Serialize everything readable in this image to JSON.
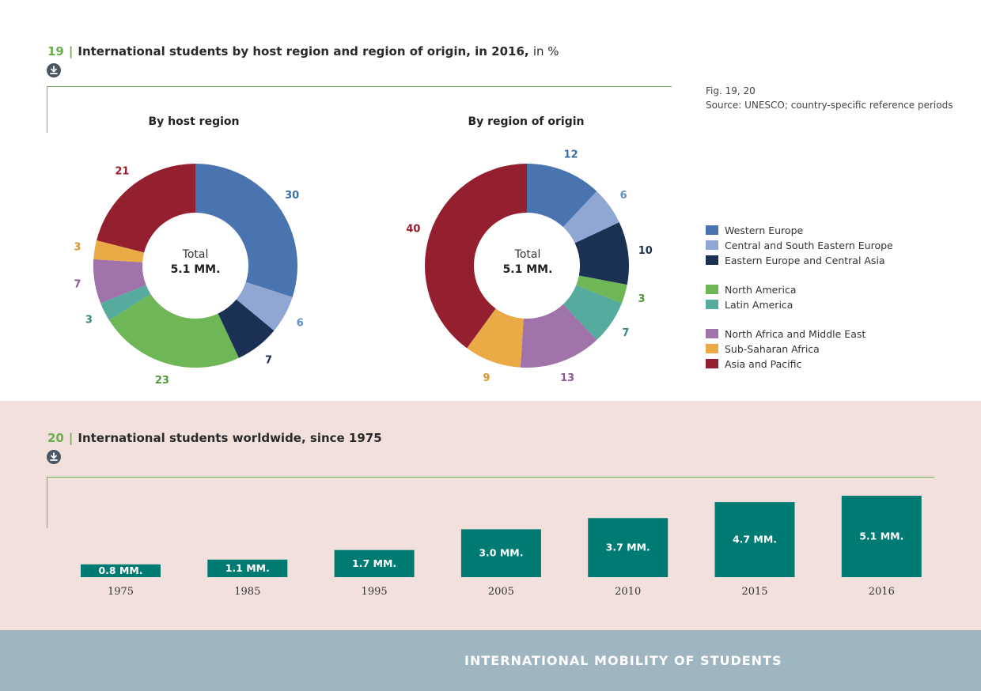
{
  "fig19": {
    "number": "19",
    "separator": "|",
    "title": "International students by host region and region of origin, in 2016,",
    "title_suffix": "in %",
    "download_icon": "download-icon"
  },
  "fig20": {
    "number": "20",
    "separator": "|",
    "title": "International students worldwide, since 1975",
    "download_icon": "download-icon"
  },
  "notes": {
    "fig_ref": "Fig. 19, 20",
    "source": "Source: UNESCO; country-specific reference periods"
  },
  "footer": {
    "title": "INTERNATIONAL MOBILITY OF STUDENTS"
  },
  "colors": {
    "accent_green": "#6ab04c",
    "bar_teal": "#007b74",
    "mid_background": "#f2e0dd",
    "footer_background": "#9fb5c0"
  },
  "legend": [
    {
      "label": "Western Europe",
      "color": "#4a74b0"
    },
    {
      "label": "Central and South Eastern Europe",
      "color": "#8fa7d2"
    },
    {
      "label": "Eastern Europe and Central Asia",
      "color": "#1b3153"
    },
    {
      "label": "North America",
      "color": "#6fb657"
    },
    {
      "label": "Latin America",
      "color": "#55ab9d"
    },
    {
      "label": "North Africa and Middle East",
      "color": "#a173ab"
    },
    {
      "label": "Sub-Saharan Africa",
      "color": "#eaaa45"
    },
    {
      "label": "Asia and Pacific",
      "color": "#94202f"
    }
  ],
  "chart_data": [
    {
      "type": "pie",
      "title": "By host region",
      "center_label": "Total",
      "center_value": "5.1 MM.",
      "categories": [
        "Western Europe",
        "Central and South Eastern Europe",
        "Eastern Europe and Central Asia",
        "North America",
        "Latin America",
        "North Africa and Middle East",
        "Sub-Saharan Africa",
        "Asia and Pacific"
      ],
      "values": [
        30,
        6,
        7,
        23,
        3,
        7,
        3,
        21
      ],
      "label_colors": [
        "#3a6ea5",
        "#5f8fc5",
        "#1b3153",
        "#4e9a36",
        "#2e8a7c",
        "#8b5b95",
        "#d8952c",
        "#94202f"
      ]
    },
    {
      "type": "pie",
      "title": "By region of origin",
      "center_label": "Total",
      "center_value": "5.1 MM.",
      "categories": [
        "Western Europe",
        "Central and South Eastern Europe",
        "Eastern Europe and Central Asia",
        "North America",
        "Latin America",
        "North Africa and Middle East",
        "Sub-Saharan Africa",
        "Asia and Pacific"
      ],
      "values": [
        12,
        6,
        10,
        3,
        7,
        13,
        9,
        40
      ],
      "label_colors": [
        "#3a6ea5",
        "#5f8fc5",
        "#1b3153",
        "#4e9a36",
        "#2e8a7c",
        "#8b5b95",
        "#d8952c",
        "#94202f"
      ]
    },
    {
      "type": "bar",
      "title": "International students worldwide, since 1975",
      "categories": [
        "1975",
        "1985",
        "1995",
        "2005",
        "2010",
        "2015",
        "2016"
      ],
      "values": [
        0.8,
        1.1,
        1.7,
        3.0,
        3.7,
        4.7,
        5.1
      ],
      "data_labels": [
        "0.8 MM.",
        "1.1 MM.",
        "1.7 MM.",
        "3.0 MM.",
        "3.7 MM.",
        "4.7 MM.",
        "5.1 MM."
      ],
      "ylim": [
        0,
        5.1
      ]
    }
  ]
}
